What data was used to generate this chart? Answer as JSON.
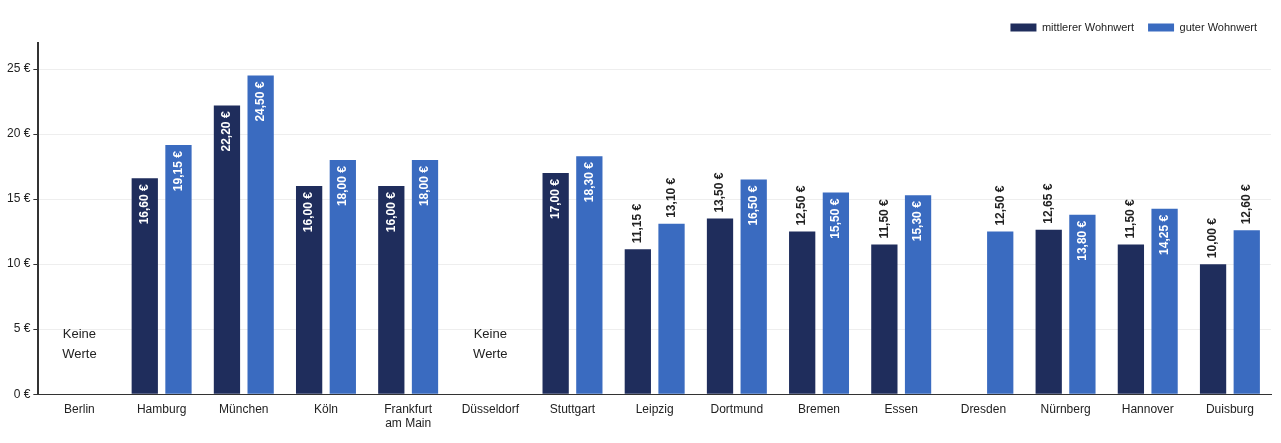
{
  "chart_data": {
    "type": "bar",
    "categories": [
      "Berlin",
      "Hamburg",
      "München",
      "Köln",
      "Frankfurt am Main",
      "Düsseldorf",
      "Stuttgart",
      "Leipzig",
      "Dortmund",
      "Bremen",
      "Essen",
      "Dresden",
      "Nürnberg",
      "Hannover",
      "Duisburg"
    ],
    "series": [
      {
        "name": "mittlerer Wohnwert",
        "color": "#1f2d5c",
        "values": [
          null,
          16.6,
          22.2,
          16,
          16,
          null,
          17,
          11.15,
          13.5,
          12.5,
          11.5,
          null,
          12.65,
          11.5,
          10
        ],
        "value_labels": [
          null,
          "16,60 €",
          "22,20 €",
          "16,00 €",
          "16,00 €",
          null,
          "17,00 €",
          "11,15 €",
          "13,50 €",
          "12,50 €",
          "11,50 €",
          null,
          "12,65 €",
          "11,50 €",
          "10,00 €"
        ]
      },
      {
        "name": "guter Wohnwert",
        "color": "#3a6bc0",
        "values": [
          null,
          19.15,
          24.5,
          18,
          18,
          null,
          18.3,
          13.1,
          16.5,
          15.5,
          15.3,
          12.5,
          13.8,
          14.25,
          12.6
        ],
        "value_labels": [
          null,
          "19,15 €",
          "24,50 €",
          "18,00 €",
          "18,00 €",
          null,
          "18,30 €",
          "13,10 €",
          "16,50 €",
          "15,50 €",
          "15,30 €",
          "12,50 €",
          "13,80 €",
          "14,25 €",
          "12,60 €"
        ]
      }
    ],
    "ylim": [
      0,
      27
    ],
    "yticks": [
      {
        "value": 0,
        "label": "0 €"
      },
      {
        "value": 5,
        "label": "5 €"
      },
      {
        "value": 10,
        "label": "10 €"
      },
      {
        "value": 15,
        "label": "15 €"
      },
      {
        "value": 20,
        "label": "20 €"
      },
      {
        "value": 25,
        "label": "25 €"
      }
    ],
    "grid": "y",
    "legend": "top right",
    "annotations": [
      "Keine Werte",
      "Keine Werte"
    ]
  }
}
